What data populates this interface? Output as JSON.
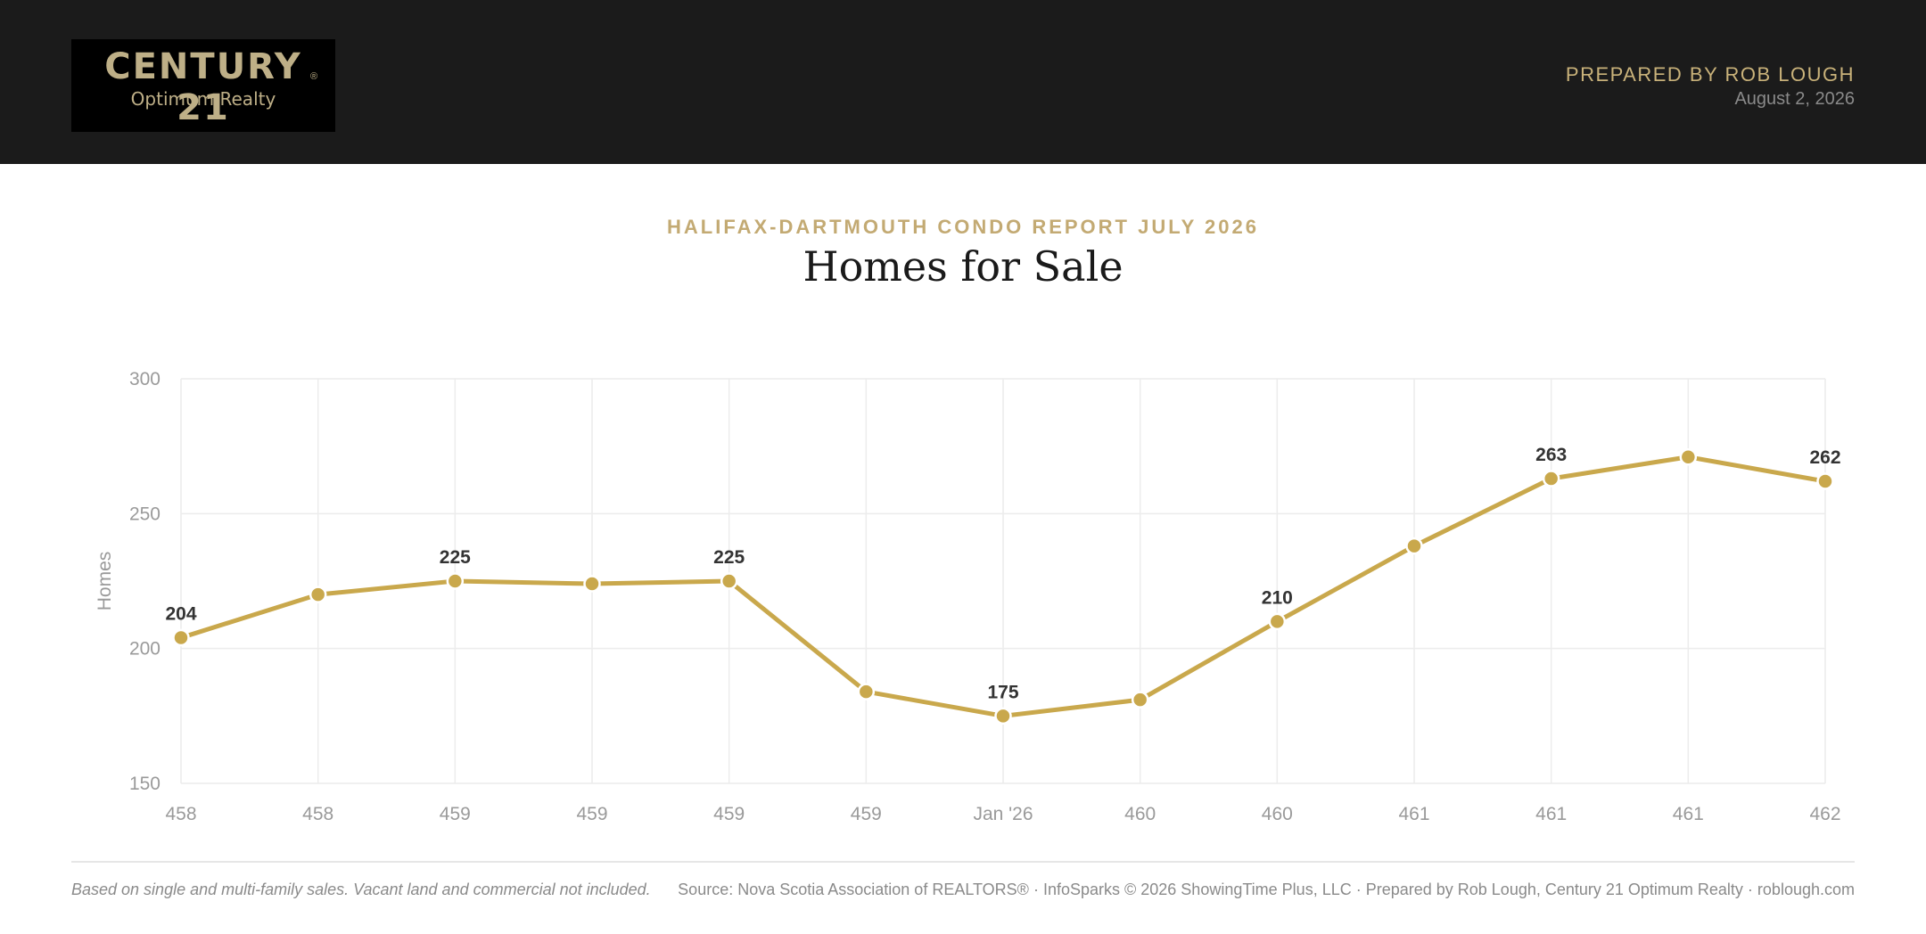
{
  "header": {
    "logo_brand": "CENTURY 21",
    "logo_reg": "®",
    "logo_sub": "Optimum Realty",
    "prepared_by": "PREPARED BY ROB LOUGH",
    "date": "August 2, 2026"
  },
  "report": {
    "subtitle": "HALIFAX-DARTMOUTH CONDO REPORT JULY 2026",
    "title": "Homes for Sale"
  },
  "colors": {
    "line": "#c9a84c",
    "grid": "#ececec",
    "tick_label": "#9a9a9a",
    "data_label": "#333333"
  },
  "chart_data": {
    "type": "line",
    "title": "Homes for Sale",
    "xlabel": "",
    "ylabel": "Homes",
    "ylim": [
      150,
      300
    ],
    "yticks": [
      150,
      200,
      250,
      300
    ],
    "grid": true,
    "categories": [
      "458",
      "458",
      "459",
      "459",
      "459",
      "459",
      "Jan '26",
      "460",
      "460",
      "461",
      "461",
      "461",
      "462"
    ],
    "series": [
      {
        "values": [
          204,
          220,
          225,
          224,
          225,
          184,
          175,
          181,
          210,
          238,
          263,
          271,
          262
        ],
        "labels": [
          "204",
          "",
          "225",
          "",
          "225",
          "",
          "175",
          "",
          "210",
          "",
          "263",
          "",
          "262"
        ]
      }
    ]
  },
  "footer": {
    "note": "Based on single and multi-family sales. Vacant land and commercial not included.",
    "source": "Source: Nova Scotia Association of REALTORS® · InfoSparks © 2026 ShowingTime Plus, LLC · Prepared by Rob Lough, Century 21 Optimum Realty · roblough.com"
  }
}
